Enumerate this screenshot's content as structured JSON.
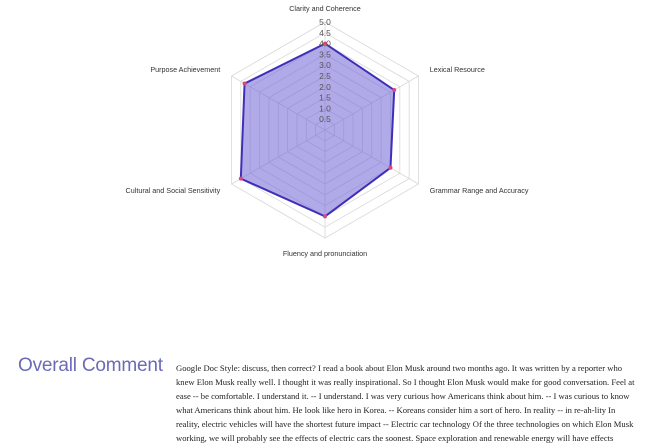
{
  "chart_data": {
    "type": "radar",
    "axes": [
      "Clarity and Coherence",
      "Lexical Resource",
      "Grammar Range and Accuracy",
      "Fluency and pronunciation",
      "Cultural and Social Sensitivity",
      "Purpose Achievement"
    ],
    "ticks": [
      "0.5",
      "1.0",
      "1.5",
      "2.0",
      "2.5",
      "3.0",
      "3.5",
      "4.0",
      "4.5",
      "5.0"
    ],
    "rmax": 5,
    "series": [
      {
        "values": [
          4.0,
          3.7,
          3.5,
          4.0,
          4.5,
          4.3
        ]
      }
    ],
    "grid": true,
    "colors": {
      "fill": "rgba(112,100,214,0.55)",
      "stroke": "#3f2fb8",
      "point": "#e0457a",
      "grid": "#d8d8d8"
    }
  },
  "comment": {
    "title": "Overall Comment",
    "body": "Google Doc Style: discuss, then correct? I read a book about Elon Musk around two months ago. It was written by a reporter who knew Elon Musk really well. I thought it was really inspirational. So I thought Elon Musk would make for good conversation. Feel at ease -- be comfortable. I understand it. -- I understand. I was very curious how Americans think about him. -- I was curious to know what Americans think about him. He look like hero in Korea. -- Koreans consider him a sort of hero. In reality -- in re-ah-lity In reality, electric vehicles will have the shortest future impact -- Electric car technology Of the three technologies on which Elon Musk working, we will probably see the effects of electric cars the soonest. Space exploration and renewable energy will have effects"
  }
}
